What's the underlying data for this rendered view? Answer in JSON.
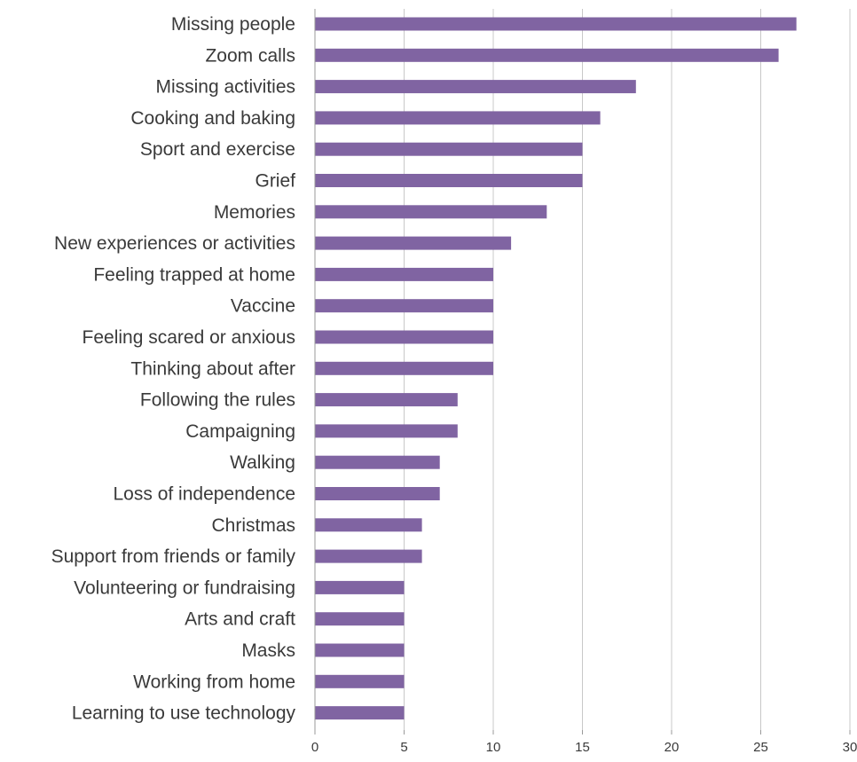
{
  "chart_data": {
    "type": "bar",
    "orientation": "horizontal",
    "categories": [
      "Missing people",
      "Zoom calls",
      "Missing activities",
      "Cooking and baking",
      "Sport and exercise",
      "Grief",
      "Memories",
      "New experiences or activities",
      "Feeling trapped at home",
      "Vaccine",
      "Feeling scared or anxious",
      "Thinking about after",
      "Following the rules",
      "Campaigning",
      "Walking",
      "Loss of independence",
      "Christmas",
      "Support from friends or family",
      "Volunteering or fundraising",
      "Arts and craft",
      "Masks",
      "Working from home",
      "Learning to use technology"
    ],
    "values": [
      27,
      26,
      18,
      16,
      15,
      15,
      13,
      11,
      10,
      10,
      10,
      10,
      8,
      8,
      7,
      7,
      6,
      6,
      5,
      5,
      5,
      5,
      5
    ],
    "xlim": [
      0,
      30
    ],
    "xticks": [
      "0",
      "5",
      "10",
      "15",
      "20",
      "25",
      "30"
    ],
    "grid": "vertical",
    "bar_color": "#8064a2",
    "title": "",
    "xlabel": "",
    "ylabel": ""
  }
}
